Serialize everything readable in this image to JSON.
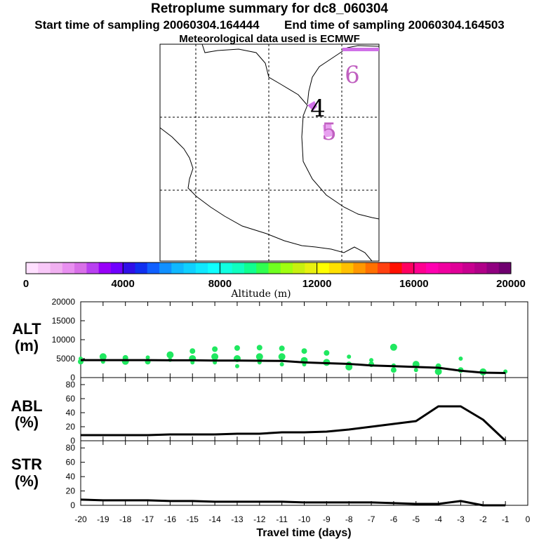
{
  "header": {
    "title": "Retroplume summary for dc8_060304",
    "start_label": "Start time of sampling 20060304.164444",
    "end_label": "End time of sampling 20060304.164503",
    "met_label": "Meteorological data used is ECMWF"
  },
  "map": {
    "markers": [
      {
        "label": "4",
        "color": "#000000"
      },
      {
        "label": "5",
        "color": "#c060c0"
      },
      {
        "label": "6",
        "color": "#c060c0"
      }
    ]
  },
  "colorbar": {
    "title": "Altitude (m)",
    "tick_labels": [
      "0",
      "4000",
      "8000",
      "12000",
      "16000",
      "20000"
    ],
    "colors": [
      "#ffe0ff",
      "#f8c8f8",
      "#f0b0f0",
      "#e890f0",
      "#d870e8",
      "#b840f0",
      "#9800f8",
      "#7000ff",
      "#3010e8",
      "#1030f0",
      "#1060ff",
      "#1090ff",
      "#10b8ff",
      "#10d0ff",
      "#10e8ff",
      "#10ffff",
      "#10ffe0",
      "#10ffc0",
      "#10ff90",
      "#30ff50",
      "#70ff20",
      "#a0ff10",
      "#c8f010",
      "#e8f010",
      "#ffff00",
      "#ffe000",
      "#ffc000",
      "#ff9800",
      "#ff7000",
      "#ff4010",
      "#ff1000",
      "#ff0060",
      "#ff0090",
      "#ff00b0",
      "#f000a0",
      "#e00098",
      "#c80090",
      "#b00088",
      "#900080",
      "#700070"
    ]
  },
  "chart_data": [
    {
      "type": "line",
      "name": "ALT",
      "ylabel": "ALT (m)",
      "ylim": [
        0,
        20000
      ],
      "yticks": [
        "0",
        "5000",
        "10000",
        "15000",
        "20000"
      ],
      "x": [
        -20,
        -19,
        -18,
        -17,
        -16,
        -15,
        -14,
        -13,
        -12,
        -11,
        -10,
        -9,
        -8,
        -7,
        -6,
        -5,
        -4,
        -3,
        -2,
        -1
      ],
      "values": [
        4600,
        4600,
        4600,
        4600,
        4550,
        4550,
        4500,
        4500,
        4450,
        4400,
        4000,
        3800,
        3600,
        3200,
        3000,
        2800,
        2600,
        1800,
        1300,
        1200
      ],
      "scatter": {
        "color": "#20e860",
        "points": [
          [
            -20,
            5000
          ],
          [
            -20,
            4200
          ],
          [
            -19,
            5500
          ],
          [
            -19,
            4200
          ],
          [
            -18,
            5200
          ],
          [
            -18,
            4300
          ],
          [
            -17,
            5300
          ],
          [
            -17,
            4200
          ],
          [
            -16,
            6000
          ],
          [
            -16,
            4700
          ],
          [
            -15,
            7000
          ],
          [
            -15,
            5000
          ],
          [
            -15,
            4000
          ],
          [
            -14,
            7500
          ],
          [
            -14,
            5500
          ],
          [
            -14,
            4000
          ],
          [
            -13,
            7800
          ],
          [
            -13,
            5000
          ],
          [
            -13,
            3000
          ],
          [
            -12,
            7900
          ],
          [
            -12,
            5500
          ],
          [
            -12,
            4000
          ],
          [
            -11,
            7700
          ],
          [
            -11,
            5500
          ],
          [
            -11,
            3500
          ],
          [
            -10,
            7000
          ],
          [
            -10,
            4500
          ],
          [
            -10,
            3500
          ],
          [
            -9,
            6500
          ],
          [
            -9,
            4000
          ],
          [
            -8,
            5500
          ],
          [
            -8,
            3500
          ],
          [
            -8,
            2800
          ],
          [
            -7,
            4600
          ],
          [
            -7,
            3500
          ],
          [
            -6,
            8000
          ],
          [
            -6,
            3200
          ],
          [
            -6,
            2000
          ],
          [
            -5,
            3500
          ],
          [
            -5,
            2000
          ],
          [
            -4,
            3000
          ],
          [
            -4,
            1600
          ],
          [
            -3,
            5000
          ],
          [
            -3,
            2000
          ],
          [
            -2,
            1500
          ],
          [
            -1,
            1600
          ]
        ]
      }
    },
    {
      "type": "line",
      "name": "ABL",
      "ylabel": "ABL (%)",
      "ylim": [
        0,
        90
      ],
      "yticks": [
        "0",
        "20",
        "40",
        "60",
        "80"
      ],
      "x": [
        -20,
        -19,
        -18,
        -17,
        -16,
        -15,
        -14,
        -13,
        -12,
        -11,
        -10,
        -9,
        -8,
        -7,
        -6,
        -5,
        -4,
        -3,
        -2,
        -1
      ],
      "values": [
        8,
        8,
        8,
        8,
        9,
        9,
        9,
        10,
        10,
        12,
        12,
        13,
        16,
        20,
        24,
        28,
        49,
        49,
        30,
        0
      ]
    },
    {
      "type": "line",
      "name": "STR",
      "ylabel": "STR (%)",
      "xlabel": "Travel time (days)",
      "ylim": [
        0,
        90
      ],
      "yticks": [
        "0",
        "20",
        "40",
        "60",
        "80"
      ],
      "xticks": [
        "-20",
        "-19",
        "-18",
        "-17",
        "-16",
        "-15",
        "-14",
        "-13",
        "-12",
        "-11",
        "-10",
        "-9",
        "-8",
        "-7",
        "-6",
        "-5",
        "-4",
        "-3",
        "-2",
        "-1",
        "0"
      ],
      "x": [
        -20,
        -19,
        -18,
        -17,
        -16,
        -15,
        -14,
        -13,
        -12,
        -11,
        -10,
        -9,
        -8,
        -7,
        -6,
        -5,
        -4,
        -3,
        -2,
        -1
      ],
      "values": [
        8,
        7,
        7,
        7,
        6,
        6,
        5,
        5,
        5,
        5,
        4,
        4,
        4,
        4,
        3,
        2,
        2,
        6,
        0,
        0
      ]
    }
  ]
}
